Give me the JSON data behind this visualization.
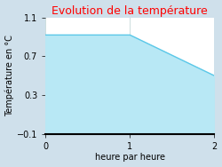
{
  "title": "Evolution de la température",
  "title_color": "#ff0000",
  "xlabel": "heure par heure",
  "ylabel": "Température en °C",
  "x": [
    0,
    1,
    2
  ],
  "y": [
    0.92,
    0.92,
    0.5
  ],
  "xlim": [
    0,
    2
  ],
  "ylim": [
    -0.1,
    1.1
  ],
  "yticks": [
    -0.1,
    0.3,
    0.7,
    1.1
  ],
  "xticks": [
    0,
    1,
    2
  ],
  "line_color": "#5bc8e8",
  "fill_color": "#b8e8f5",
  "figure_bg_color": "#cfe0eb",
  "plot_bg_color": "#ffffff",
  "line_width": 1.0,
  "title_fontsize": 9,
  "axis_fontsize": 7,
  "label_fontsize": 7,
  "grid_color": "#ccdddd",
  "bottom_line_color": "#000000"
}
